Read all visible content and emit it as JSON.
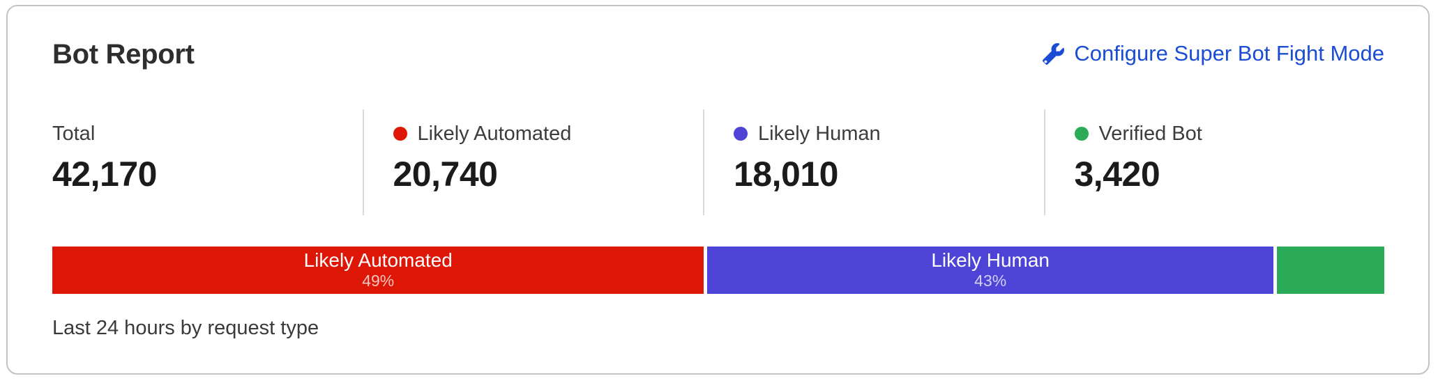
{
  "card": {
    "title": "Bot Report",
    "configure_link": {
      "label": "Configure Super Bot Fight Mode",
      "icon": "wrench-icon",
      "color": "#1a4dd4"
    },
    "stats": [
      {
        "label": "Total",
        "value": "42,170",
        "dot_color": ""
      },
      {
        "label": "Likely Automated",
        "value": "20,740",
        "dot_color": "#dd1605"
      },
      {
        "label": "Likely Human",
        "value": "18,010",
        "dot_color": "#4d43d6"
      },
      {
        "label": "Verified Bot",
        "value": "3,420",
        "dot_color": "#2bab57"
      }
    ],
    "caption": "Last 24 hours by request type"
  },
  "chart_data": {
    "type": "bar",
    "orientation": "horizontal-stacked",
    "title": "Bot Report",
    "subtitle": "Last 24 hours by request type",
    "categories": [
      "Likely Automated",
      "Likely Human",
      "Verified Bot"
    ],
    "values": [
      20740,
      18010,
      3420
    ],
    "total": 42170,
    "segments": [
      {
        "label": "Likely Automated",
        "value": 20740,
        "pct_label": "49%",
        "color": "#dd1605",
        "show_text": true
      },
      {
        "label": "Likely Human",
        "value": 18010,
        "pct_label": "43%",
        "color": "#4d43d6",
        "show_text": true
      },
      {
        "label": "Verified Bot",
        "value": 3420,
        "pct_label": "",
        "color": "#2bab57",
        "show_text": false
      }
    ],
    "grid": false,
    "legend_position": "top"
  }
}
